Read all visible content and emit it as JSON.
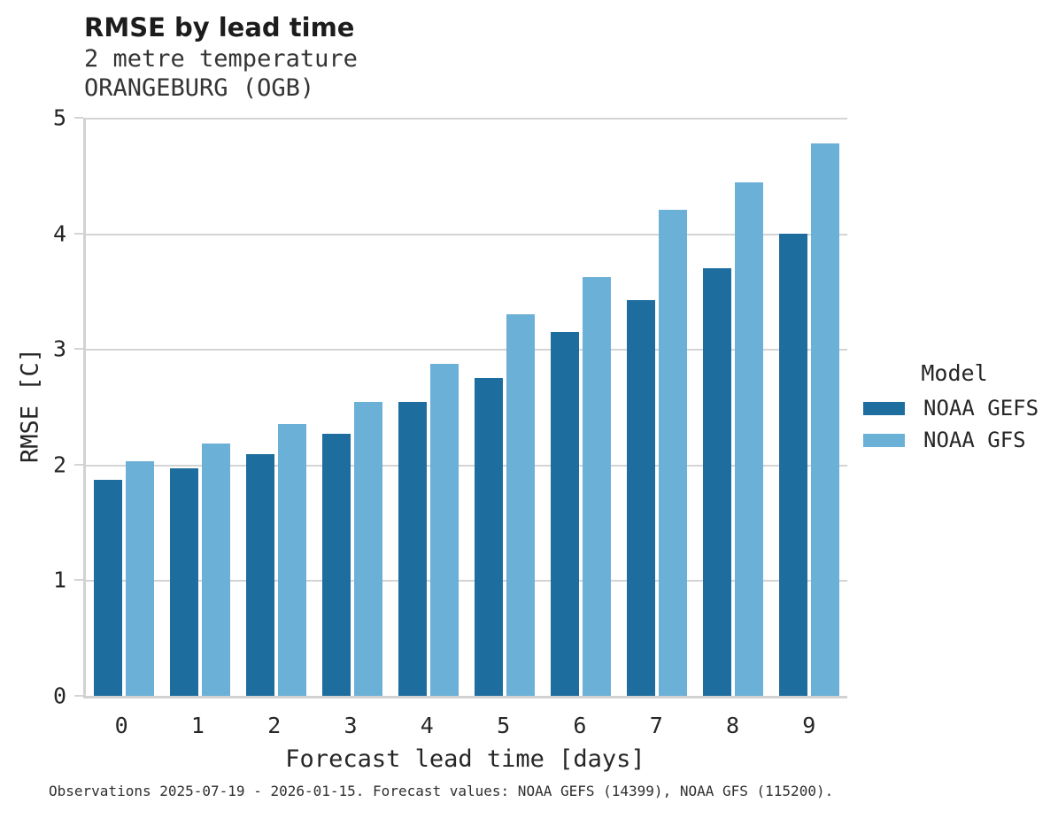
{
  "chart_data": {
    "type": "bar",
    "title": "RMSE by lead time",
    "subtitle": [
      "2 metre temperature",
      "ORANGEBURG (OGB)"
    ],
    "categories": [
      "0",
      "1",
      "2",
      "3",
      "4",
      "5",
      "6",
      "7",
      "8",
      "9"
    ],
    "series": [
      {
        "name": "NOAA GEFS",
        "color": "#1d6d9e",
        "values": [
          1.87,
          1.97,
          2.09,
          2.27,
          2.54,
          2.75,
          3.15,
          3.42,
          3.7,
          4.0
        ]
      },
      {
        "name": "NOAA GFS",
        "color": "#6bb0d6",
        "values": [
          2.03,
          2.18,
          2.35,
          2.54,
          2.87,
          3.3,
          3.62,
          4.2,
          4.44,
          4.78
        ]
      }
    ],
    "xlabel": "Forecast lead time [days]",
    "ylabel": "RMSE [C]",
    "ylim": [
      0,
      5
    ],
    "yticks": [
      0,
      1,
      2,
      3,
      4,
      5
    ],
    "grid": true,
    "legend_title": "Model",
    "legend_position": "right",
    "footnote": "Observations 2025-07-19 - 2026-01-15. Forecast values: NOAA GEFS (14399), NOAA GFS (115200)."
  },
  "colors": {
    "series_dark": "#1d6d9e",
    "series_light": "#6bb0d6",
    "gridline": "#d4d4d4",
    "axis_domain": "#d2d2d2",
    "text": "#262626"
  }
}
